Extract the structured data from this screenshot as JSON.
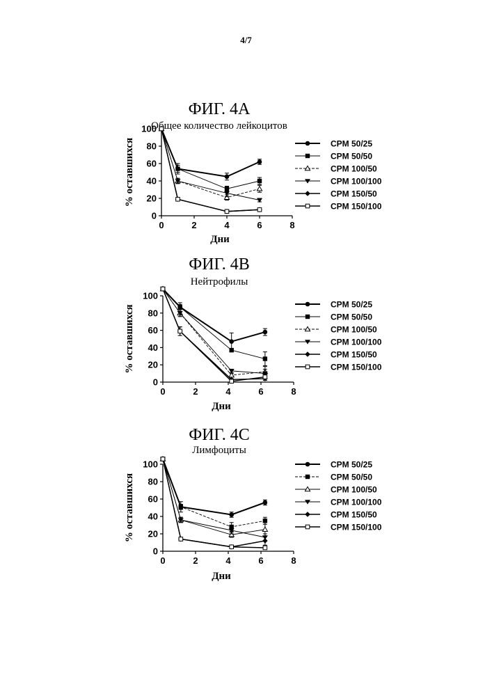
{
  "page": {
    "number": "4/7"
  },
  "chart_data": [
    {
      "type": "line",
      "figure_label": "ФИГ. 4А",
      "title": "Общее количество лейкоцитов",
      "xlabel": "Дни",
      "ylabel": "% оставшихся",
      "xlim": [
        0,
        8
      ],
      "ylim": [
        0,
        100
      ],
      "xticks": [
        0,
        2,
        4,
        6,
        8
      ],
      "yticks": [
        0,
        20,
        40,
        60,
        80,
        100
      ],
      "legend_position": "right",
      "series": [
        {
          "name": "CPM 50/25",
          "marker": "filled-circle",
          "dash": "solid",
          "weight": "bold",
          "x": [
            0,
            1,
            4,
            6
          ],
          "y": [
            100,
            54,
            45,
            62
          ],
          "err": [
            0,
            4,
            4,
            3
          ]
        },
        {
          "name": "CPM 50/50",
          "marker": "filled-square",
          "dash": "solid",
          "weight": "thin",
          "x": [
            0,
            1,
            4,
            6
          ],
          "y": [
            100,
            54,
            31,
            40
          ],
          "err": [
            0,
            6,
            3,
            4
          ]
        },
        {
          "name": "CPM 100/50",
          "marker": "open-triangle",
          "dash": "dashed",
          "weight": "thin",
          "x": [
            0,
            1,
            4,
            6
          ],
          "y": [
            100,
            40,
            21,
            31
          ],
          "err": [
            0,
            3,
            3,
            4
          ]
        },
        {
          "name": "CPM 100/100",
          "marker": "filled-tri-down",
          "dash": "solid",
          "weight": "thin",
          "x": [
            0,
            1,
            4,
            6
          ],
          "y": [
            100,
            40,
            26,
            18
          ],
          "err": [
            0,
            3,
            4,
            2
          ]
        },
        {
          "name": "CPM 150/50",
          "marker": "filled-diamond",
          "dash": "solid",
          "weight": "normal",
          "x": [
            0,
            1,
            4,
            6
          ],
          "y": [
            100,
            19,
            5,
            7
          ],
          "err": [
            0,
            1,
            1,
            1
          ]
        },
        {
          "name": "CPM 150/100",
          "marker": "open-square",
          "dash": "solid",
          "weight": "normal",
          "x": [
            0,
            1,
            4,
            6
          ],
          "y": [
            100,
            19,
            5,
            7
          ],
          "err": [
            0,
            1,
            1,
            1
          ]
        }
      ]
    },
    {
      "type": "line",
      "figure_label": "ФИГ. 4В",
      "title": "Нейтрофилы",
      "xlabel": "Дни",
      "ylabel": "% оставшихся",
      "xlim": [
        0,
        8
      ],
      "ylim": [
        0,
        100
      ],
      "xticks": [
        0,
        2,
        4,
        6,
        8
      ],
      "yticks": [
        0,
        20,
        40,
        60,
        80,
        100
      ],
      "legend_position": "right",
      "series": [
        {
          "name": "CPM 50/25",
          "marker": "filled-circle",
          "dash": "solid",
          "weight": "bold",
          "x": [
            0,
            1.05,
            4.2,
            6.25
          ],
          "y": [
            108,
            87,
            47,
            58
          ],
          "err": [
            0,
            5,
            10,
            4
          ]
        },
        {
          "name": "CPM 50/50",
          "marker": "filled-square",
          "dash": "solid",
          "weight": "thin",
          "x": [
            0,
            1.05,
            4.2,
            6.25
          ],
          "y": [
            108,
            87,
            37,
            27
          ],
          "err": [
            0,
            3,
            2,
            8
          ]
        },
        {
          "name": "CPM 100/50",
          "marker": "open-triangle",
          "dash": "dashed",
          "weight": "thin",
          "x": [
            0,
            1.05,
            4.2,
            6.25
          ],
          "y": [
            108,
            80,
            8,
            12
          ],
          "err": [
            0,
            4,
            2,
            3
          ]
        },
        {
          "name": "CPM 100/100",
          "marker": "filled-tri-down",
          "dash": "solid",
          "weight": "thin",
          "x": [
            0,
            1.05,
            4.2,
            6.25
          ],
          "y": [
            108,
            80,
            13,
            10
          ],
          "err": [
            0,
            4,
            2,
            8
          ]
        },
        {
          "name": "CPM 150/50",
          "marker": "filled-diamond",
          "dash": "solid",
          "weight": "normal",
          "x": [
            0,
            1.05,
            4.2,
            6.25
          ],
          "y": [
            108,
            59,
            3,
            4
          ],
          "err": [
            0,
            5,
            1,
            2
          ]
        },
        {
          "name": "CPM 150/100",
          "marker": "open-square",
          "dash": "solid",
          "weight": "normal",
          "x": [
            0,
            1.05,
            4.2,
            6.25
          ],
          "y": [
            108,
            59,
            1,
            6
          ],
          "err": [
            0,
            5,
            1,
            2
          ]
        }
      ]
    },
    {
      "type": "line",
      "figure_label": "ФИГ. 4С",
      "title": "Лимфоциты",
      "xlabel": "Дни",
      "ylabel": "% оставшихся",
      "xlim": [
        0,
        8
      ],
      "ylim": [
        0,
        100
      ],
      "xticks": [
        0,
        2,
        4,
        6,
        8
      ],
      "yticks": [
        0,
        20,
        40,
        60,
        80,
        100
      ],
      "legend_position": "right",
      "series": [
        {
          "name": "CPM 50/25",
          "marker": "filled-circle",
          "dash": "solid",
          "weight": "bold",
          "x": [
            0,
            1.1,
            4.2,
            6.25
          ],
          "y": [
            106,
            51,
            42,
            56
          ],
          "err": [
            0,
            6,
            3,
            3
          ]
        },
        {
          "name": "CPM 50/50",
          "marker": "filled-square",
          "dash": "dashed",
          "weight": "thin",
          "x": [
            0,
            1.1,
            4.2,
            6.25
          ],
          "y": [
            106,
            51,
            28,
            35
          ],
          "err": [
            0,
            3,
            5,
            4
          ]
        },
        {
          "name": "CPM 100/50",
          "marker": "open-triangle",
          "dash": "solid",
          "weight": "thin",
          "x": [
            0,
            1.1,
            4.2,
            6.25
          ],
          "y": [
            106,
            36,
            19,
            25
          ],
          "err": [
            0,
            3,
            3,
            8
          ]
        },
        {
          "name": "CPM 100/100",
          "marker": "filled-tri-down",
          "dash": "solid",
          "weight": "thin",
          "x": [
            0,
            1.1,
            4.2,
            6.25
          ],
          "y": [
            106,
            36,
            24,
            16
          ],
          "err": [
            0,
            3,
            4,
            4
          ]
        },
        {
          "name": "CPM 150/50",
          "marker": "filled-diamond",
          "dash": "solid",
          "weight": "normal",
          "x": [
            0,
            1.1,
            4.2,
            6.25
          ],
          "y": [
            106,
            14,
            5,
            12
          ],
          "err": [
            0,
            1,
            1,
            5
          ]
        },
        {
          "name": "CPM 150/100",
          "marker": "open-square",
          "dash": "solid",
          "weight": "normal",
          "x": [
            0,
            1.1,
            4.2,
            6.25
          ],
          "y": [
            106,
            14,
            5,
            4
          ],
          "err": [
            0,
            1,
            1,
            1
          ]
        }
      ]
    }
  ]
}
